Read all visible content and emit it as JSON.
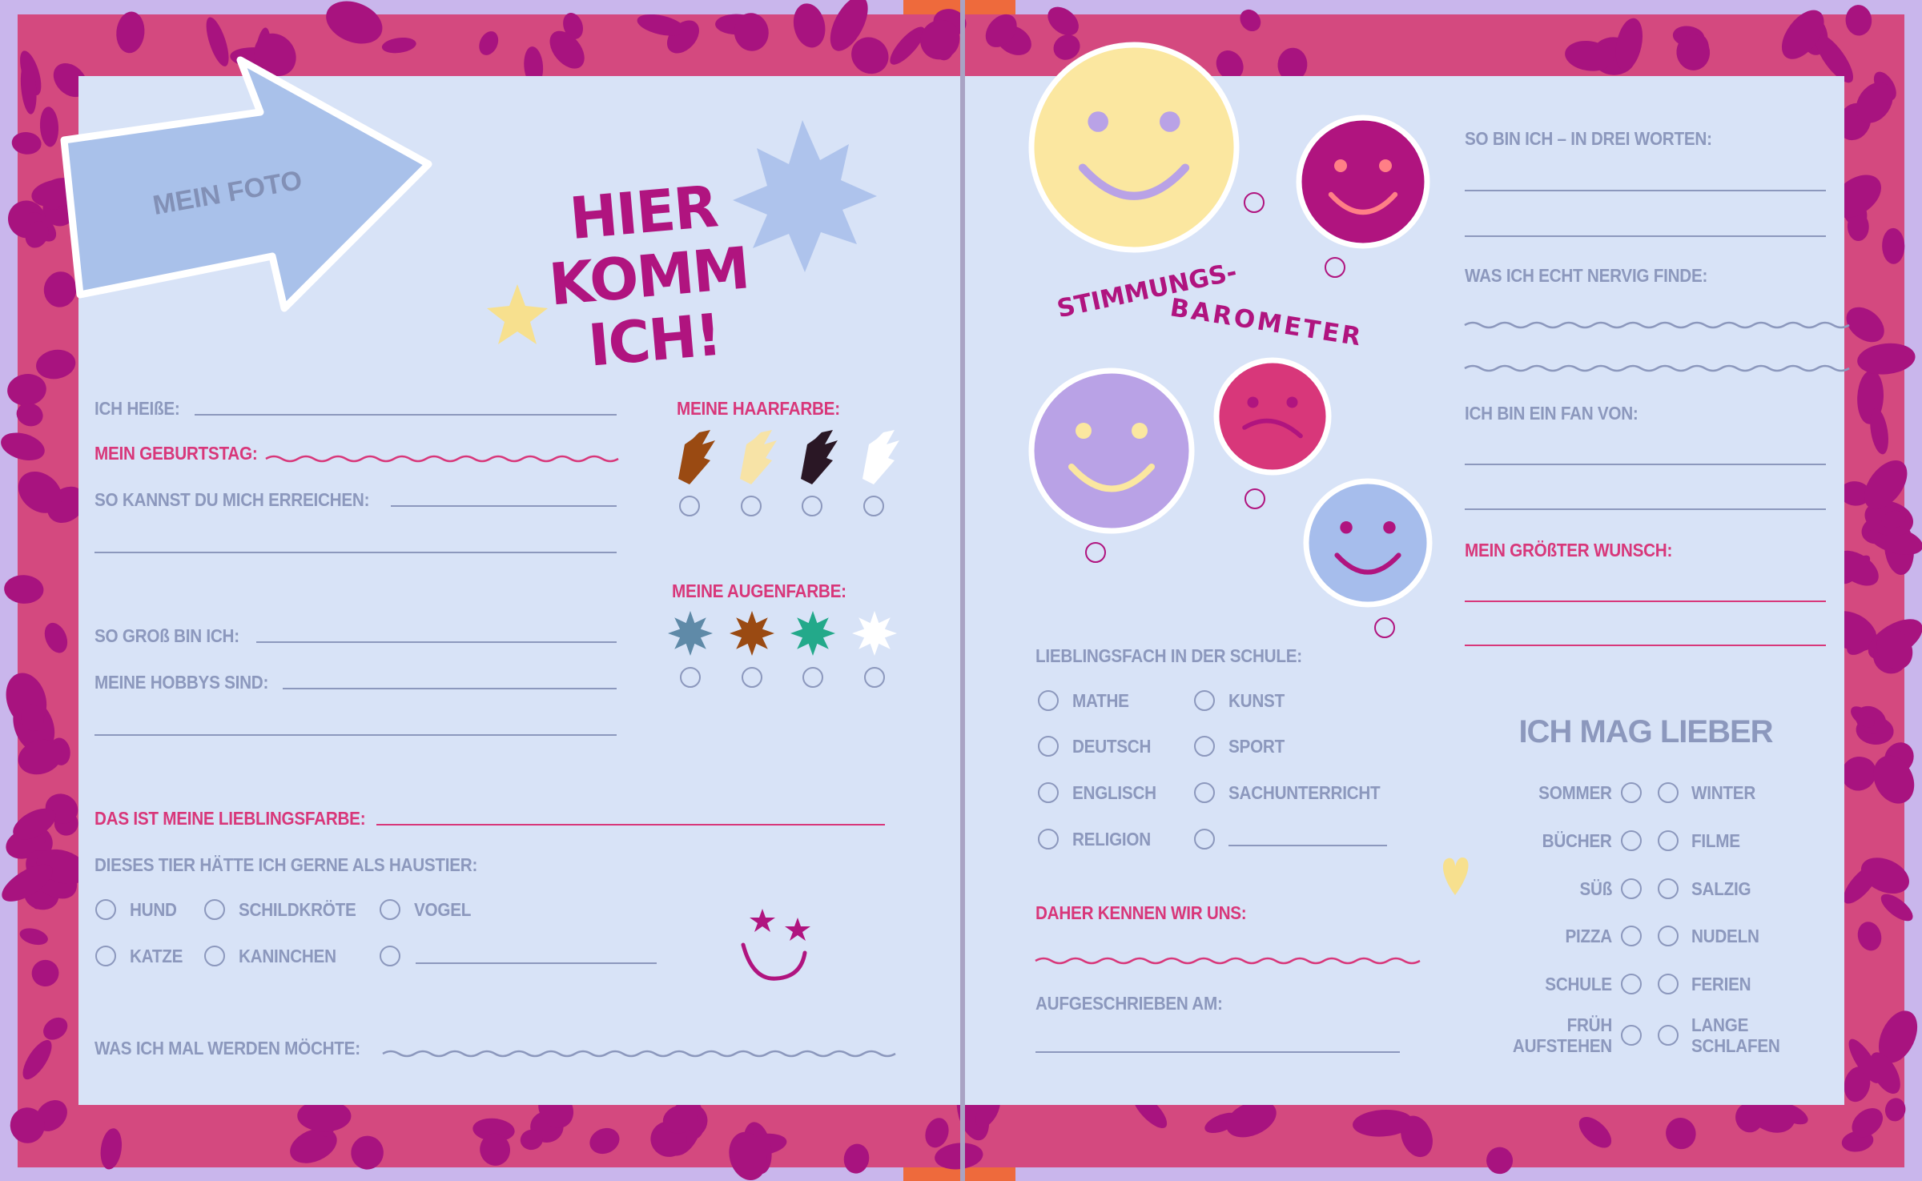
{
  "colors": {
    "page": "#d8e3f7",
    "border": "#d4497f",
    "spots": "#a8137f",
    "label": "#8c98bd",
    "accent_pink": "#d8377a",
    "magenta": "#b0147f"
  },
  "left_page": {
    "photo_label": "MEIN FOTO",
    "title_line1": "HIER KOMM",
    "title_line2": "ICH!",
    "name_label": "ICH HEIßE:",
    "birthday_label": "MEIN GEBURTSTAG:",
    "contact_label": "SO KANNST DU MICH ERREICHEN:",
    "height_label": "SO GROß BIN ICH:",
    "hobbies_label": "MEINE HOBBYS SIND:",
    "hair_label": "MEINE HAARFARBE:",
    "hair_colors": [
      "#9a4a12",
      "#f7e3a6",
      "#2a1725",
      "#ffffff"
    ],
    "eye_label": "MEINE AUGENFARBE:",
    "eye_colors": [
      "#5f8aa8",
      "#9a4a12",
      "#23a98a",
      "#ffffff"
    ],
    "favorite_color_label": "DAS IST MEINE LIEBLINGSFARBE:",
    "pet_label": "DIESES TIER HÄTTE ICH GERNE ALS HAUSTIER:",
    "pets": [
      "HUND",
      "SCHILDKRÖTE",
      "VOGEL",
      "KATZE",
      "KANINCHEN",
      ""
    ],
    "future_label": "WAS ICH MAL WERDEN MÖCHTE:"
  },
  "right_page": {
    "barometer_line1": "STIMMUNGS-",
    "barometer_line2": "BAROMETER",
    "moods": [
      "in-love-smiley",
      "laughing-smiley",
      "dizzy-smiley",
      "sad-smiley",
      "star-eyed-smiley"
    ],
    "three_words_label": "SO BIN ICH – IN DREI WORTEN:",
    "annoying_label": "WAS ICH ECHT NERVIG FINDE:",
    "fan_label": "ICH BIN EIN FAN VON:",
    "wish_label": "MEIN GRÖßTER WUNSCH:",
    "subject_label": "LIEBLINGSFACH IN DER SCHULE:",
    "subjects": [
      "MATHE",
      "KUNST",
      "DEUTSCH",
      "SPORT",
      "ENGLISCH",
      "SACHUNTERRICHT",
      "RELIGION",
      ""
    ],
    "met_label": "DAHER KENNEN WIR UNS:",
    "written_label": "AUFGESCHRIEBEN AM:",
    "prefer_title": "ICH MAG LIEBER",
    "prefer": [
      {
        "left": "SOMMER",
        "right": "WINTER"
      },
      {
        "left": "BÜCHER",
        "right": "FILME"
      },
      {
        "left": "SÜß",
        "right": "SALZIG"
      },
      {
        "left": "PIZZA",
        "right": "NUDELN"
      },
      {
        "left": "SCHULE",
        "right": "FERIEN"
      },
      {
        "left": "FRÜH AUFSTEHEN",
        "right": "LANGE SCHLAFEN"
      }
    ]
  }
}
